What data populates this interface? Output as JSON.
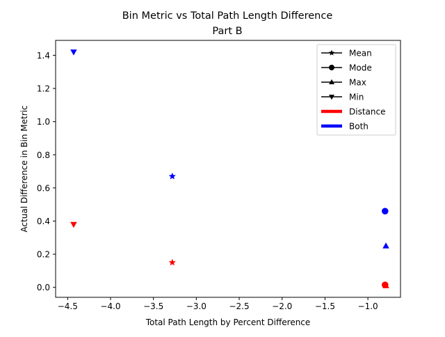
{
  "chart_data": {
    "type": "scatter",
    "title_line1": "Bin Metric vs Total Path Length Difference",
    "title_line2": "Part B",
    "xlabel": "Total Path Length by Percent Difference",
    "ylabel": "Actual Difference in Bin Metric",
    "xlim": [
      -4.64,
      -0.62
    ],
    "ylim": [
      -0.06,
      1.49
    ],
    "xticks": [
      -4.5,
      -4.0,
      -3.5,
      -3.0,
      -2.5,
      -2.0,
      -1.5,
      -1.0
    ],
    "xtick_labels": [
      "−4.5",
      "−4.0",
      "−3.5",
      "−3.0",
      "−2.5",
      "−2.0",
      "−1.5",
      "−1.0"
    ],
    "yticks": [
      0.0,
      0.2,
      0.4,
      0.6,
      0.8,
      1.0,
      1.2,
      1.4
    ],
    "ytick_labels": [
      "0.0",
      "0.2",
      "0.4",
      "0.6",
      "0.8",
      "1.0",
      "1.2",
      "1.4"
    ],
    "grid": false,
    "legend_position": "top-right",
    "legend": [
      {
        "label": "Mean",
        "kind": "marker",
        "marker": "star"
      },
      {
        "label": "Mode",
        "kind": "marker",
        "marker": "circle"
      },
      {
        "label": "Max",
        "kind": "marker",
        "marker": "triangle-up"
      },
      {
        "label": "Min",
        "kind": "marker",
        "marker": "triangle-down"
      },
      {
        "label": "Distance",
        "kind": "color",
        "color": "#ff0000"
      },
      {
        "label": "Both",
        "kind": "color",
        "color": "#0000ff"
      }
    ],
    "colors": {
      "Distance": "#ff0000",
      "Both": "#0000ff"
    },
    "points": [
      {
        "group": "Both",
        "stat": "Min",
        "marker": "triangle-down",
        "x": -4.43,
        "y": 1.42
      },
      {
        "group": "Distance",
        "stat": "Min",
        "marker": "triangle-down",
        "x": -4.43,
        "y": 0.38
      },
      {
        "group": "Both",
        "stat": "Mean",
        "marker": "star",
        "x": -3.28,
        "y": 0.67
      },
      {
        "group": "Distance",
        "stat": "Mean",
        "marker": "star",
        "x": -3.28,
        "y": 0.15
      },
      {
        "group": "Both",
        "stat": "Mode",
        "marker": "circle",
        "x": -0.8,
        "y": 0.46
      },
      {
        "group": "Both",
        "stat": "Max",
        "marker": "triangle-up",
        "x": -0.79,
        "y": 0.25
      },
      {
        "group": "Distance",
        "stat": "Mode",
        "marker": "circle",
        "x": -0.8,
        "y": 0.015
      },
      {
        "group": "Distance",
        "stat": "Max",
        "marker": "triangle-up",
        "x": -0.79,
        "y": 0.01
      }
    ]
  }
}
